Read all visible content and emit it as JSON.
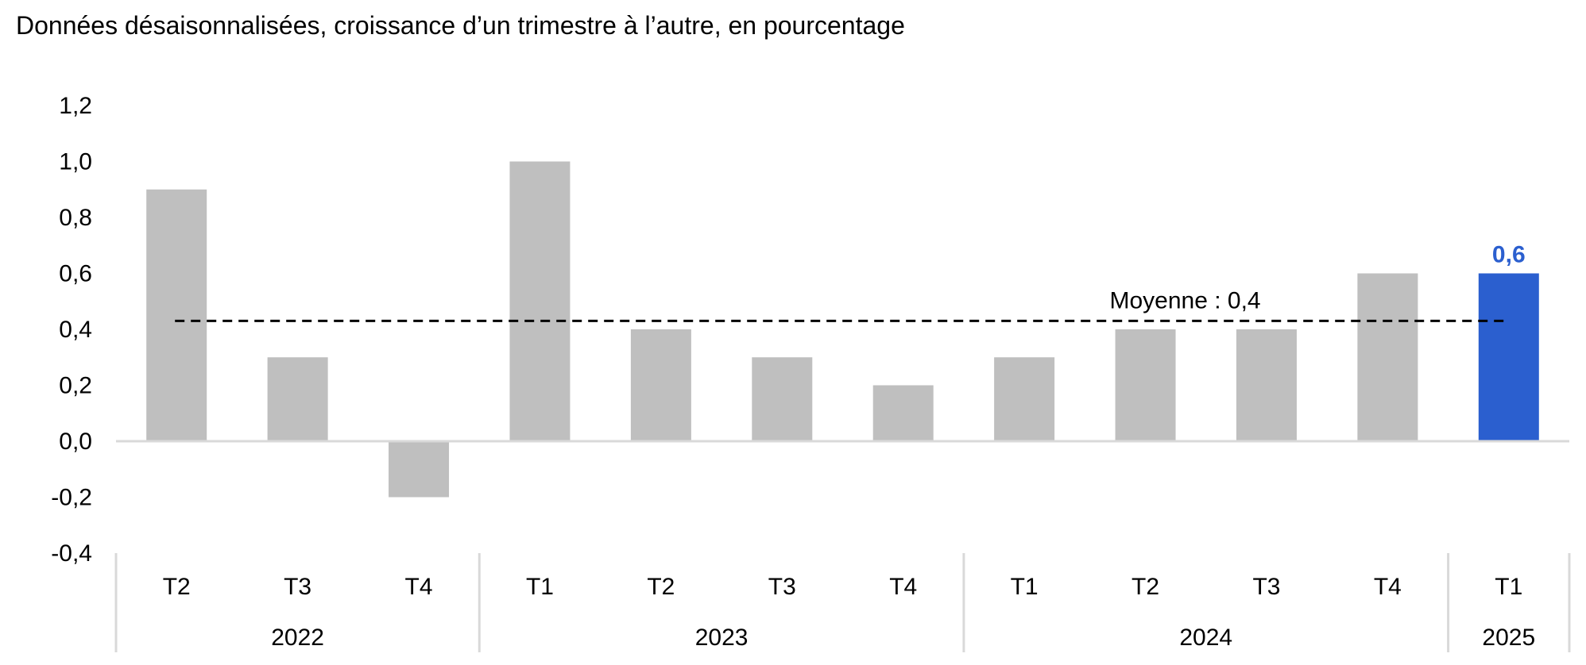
{
  "chart_data": {
    "type": "bar",
    "title": "Données désaisonnalisées, croissance d’un trimestre à l’autre, en pourcentage",
    "categories": [
      "T2",
      "T3",
      "T4",
      "T1",
      "T2",
      "T3",
      "T4",
      "T1",
      "T2",
      "T3",
      "T4",
      "T1"
    ],
    "years": [
      {
        "label": "2022",
        "count": 3
      },
      {
        "label": "2023",
        "count": 4
      },
      {
        "label": "2024",
        "count": 4
      },
      {
        "label": "2025",
        "count": 1
      }
    ],
    "values": [
      0.9,
      0.3,
      -0.2,
      1.0,
      0.4,
      0.3,
      0.2,
      0.3,
      0.4,
      0.4,
      0.6,
      0.6
    ],
    "highlight_index": 11,
    "highlight_label": "0,6",
    "average": {
      "value": 0.43,
      "label": "Moyenne : 0,4"
    },
    "ylim": [
      -0.4,
      1.2
    ],
    "yticks": [
      {
        "value": 1.2,
        "label": "1,2"
      },
      {
        "value": 1.0,
        "label": "1,0"
      },
      {
        "value": 0.8,
        "label": "0,8"
      },
      {
        "value": 0.6,
        "label": "0,6"
      },
      {
        "value": 0.4,
        "label": "0,4"
      },
      {
        "value": 0.2,
        "label": "0,2"
      },
      {
        "value": 0.0,
        "label": "0,0"
      },
      {
        "value": -0.2,
        "label": "-0,2"
      },
      {
        "value": -0.4,
        "label": "-0,4"
      }
    ],
    "xlabel": "",
    "ylabel": "",
    "grid": false,
    "legend": "none",
    "colors": {
      "bar": "#bfbfbf",
      "highlight": "#2b5fcf",
      "axis": "#d9d9d9",
      "average_line": "#000000"
    }
  }
}
